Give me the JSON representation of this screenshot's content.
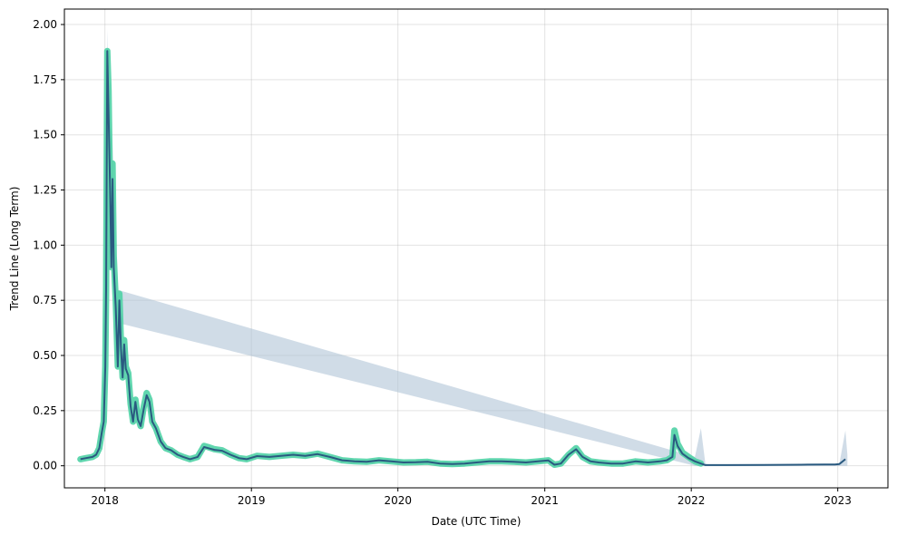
{
  "chart_data": {
    "type": "line",
    "title": "",
    "xlabel": "Date (UTC Time)",
    "ylabel": "Trend Line (Long Term)",
    "x_scale": "date",
    "xlim": [
      "2017-09-22",
      "2023-05-06"
    ],
    "ylim": [
      -0.1,
      2.07
    ],
    "x_ticks": [
      "2018",
      "2019",
      "2020",
      "2021",
      "2022",
      "2023"
    ],
    "x_tick_dates": [
      "2018-01-01",
      "2019-01-01",
      "2020-01-01",
      "2021-01-01",
      "2022-01-01",
      "2023-01-01"
    ],
    "y_ticks": [
      "0.00",
      "0.25",
      "0.50",
      "0.75",
      "1.00",
      "1.25",
      "1.50",
      "1.75",
      "2.00"
    ],
    "y_tick_values": [
      0,
      0.25,
      0.5,
      0.75,
      1.0,
      1.25,
      1.5,
      1.75,
      2.0
    ],
    "grid": true,
    "legend": "none",
    "colors": {
      "actual_glow": "#4fd1a5",
      "trend_line": "#2a5a80",
      "band": "#a9bfd3"
    },
    "series": [
      {
        "role": "actual",
        "x": [
          "2017-11-01",
          "2017-11-15",
          "2017-12-01",
          "2017-12-10",
          "2017-12-18",
          "2017-12-24",
          "2017-12-29",
          "2018-01-02",
          "2018-01-04",
          "2018-01-07",
          "2018-01-10",
          "2018-01-14",
          "2018-01-17",
          "2018-01-20",
          "2018-01-23",
          "2018-01-28",
          "2018-02-02",
          "2018-02-06",
          "2018-02-10",
          "2018-02-14",
          "2018-02-18",
          "2018-02-22",
          "2018-02-28",
          "2018-03-06",
          "2018-03-12",
          "2018-03-18",
          "2018-03-24",
          "2018-03-31",
          "2018-04-08",
          "2018-04-15",
          "2018-04-22",
          "2018-04-29",
          "2018-05-08",
          "2018-05-20",
          "2018-06-01",
          "2018-06-15",
          "2018-07-01",
          "2018-07-15",
          "2018-08-01",
          "2018-08-20",
          "2018-09-05",
          "2018-09-15",
          "2018-10-01",
          "2018-10-20",
          "2018-11-10",
          "2018-12-01",
          "2018-12-20",
          "2019-01-15",
          "2019-02-15",
          "2019-03-15",
          "2019-04-15",
          "2019-05-15",
          "2019-06-15",
          "2019-07-15",
          "2019-08-15",
          "2019-09-15",
          "2019-10-15",
          "2019-11-15",
          "2019-12-15",
          "2020-01-15",
          "2020-02-15",
          "2020-03-15",
          "2020-04-15",
          "2020-05-15",
          "2020-06-15",
          "2020-07-15",
          "2020-08-15",
          "2020-09-15",
          "2020-10-15",
          "2020-11-15",
          "2020-12-15",
          "2021-01-10",
          "2021-01-25",
          "2021-02-10",
          "2021-03-01",
          "2021-03-20",
          "2021-04-05",
          "2021-04-25",
          "2021-05-15",
          "2021-06-15",
          "2021-07-15",
          "2021-08-15",
          "2021-09-15",
          "2021-10-15",
          "2021-11-01",
          "2021-11-15",
          "2021-11-20",
          "2021-11-28",
          "2021-12-10",
          "2021-12-25",
          "2022-01-10",
          "2022-01-25"
        ],
        "y": [
          0.03,
          0.035,
          0.04,
          0.05,
          0.08,
          0.15,
          0.2,
          0.45,
          0.8,
          1.88,
          1.7,
          1.2,
          0.9,
          1.37,
          0.95,
          0.75,
          0.45,
          0.78,
          0.55,
          0.4,
          0.57,
          0.45,
          0.42,
          0.28,
          0.2,
          0.3,
          0.22,
          0.18,
          0.27,
          0.33,
          0.3,
          0.2,
          0.17,
          0.11,
          0.08,
          0.07,
          0.05,
          0.04,
          0.03,
          0.04,
          0.09,
          0.085,
          0.075,
          0.07,
          0.05,
          0.035,
          0.03,
          0.045,
          0.04,
          0.045,
          0.05,
          0.045,
          0.055,
          0.04,
          0.025,
          0.02,
          0.018,
          0.025,
          0.02,
          0.015,
          0.016,
          0.018,
          0.01,
          0.008,
          0.01,
          0.015,
          0.02,
          0.02,
          0.018,
          0.015,
          0.02,
          0.025,
          0.005,
          0.01,
          0.05,
          0.08,
          0.04,
          0.02,
          0.015,
          0.01,
          0.01,
          0.02,
          0.015,
          0.02,
          0.025,
          0.04,
          0.16,
          0.1,
          0.06,
          0.04,
          0.02,
          0.01
        ]
      },
      {
        "role": "trend",
        "x": [
          "2017-11-01",
          "2017-11-15",
          "2017-12-01",
          "2017-12-10",
          "2017-12-18",
          "2017-12-24",
          "2017-12-29",
          "2018-01-02",
          "2018-01-04",
          "2018-01-07",
          "2018-01-10",
          "2018-01-14",
          "2018-01-17",
          "2018-01-20",
          "2018-01-23",
          "2018-01-28",
          "2018-02-02",
          "2018-02-06",
          "2018-02-10",
          "2018-02-14",
          "2018-02-18",
          "2018-02-22",
          "2018-02-28",
          "2018-03-06",
          "2018-03-12",
          "2018-03-18",
          "2018-03-24",
          "2018-03-31",
          "2018-04-08",
          "2018-04-15",
          "2018-04-22",
          "2018-04-29",
          "2018-05-08",
          "2018-05-20",
          "2018-06-01",
          "2018-06-15",
          "2018-07-01",
          "2018-07-15",
          "2018-08-01",
          "2018-08-20",
          "2018-09-05",
          "2018-09-15",
          "2018-10-01",
          "2018-10-20",
          "2018-11-10",
          "2018-12-01",
          "2018-12-20",
          "2019-01-15",
          "2019-02-15",
          "2019-03-15",
          "2019-04-15",
          "2019-05-15",
          "2019-06-15",
          "2019-07-15",
          "2019-08-15",
          "2019-09-15",
          "2019-10-15",
          "2019-11-15",
          "2019-12-15",
          "2020-01-15",
          "2020-02-15",
          "2020-03-15",
          "2020-04-15",
          "2020-05-15",
          "2020-06-15",
          "2020-07-15",
          "2020-08-15",
          "2020-09-15",
          "2020-10-15",
          "2020-11-15",
          "2020-12-15",
          "2021-01-10",
          "2021-01-25",
          "2021-02-10",
          "2021-03-01",
          "2021-03-20",
          "2021-04-05",
          "2021-04-25",
          "2021-05-15",
          "2021-06-15",
          "2021-07-15",
          "2021-08-15",
          "2021-09-15",
          "2021-10-15",
          "2021-11-01",
          "2021-11-15",
          "2021-11-20",
          "2021-11-28",
          "2021-12-10",
          "2021-12-25",
          "2022-01-10",
          "2022-01-25",
          "2022-02-05",
          "2022-04-01",
          "2022-07-01",
          "2022-10-01",
          "2022-12-01",
          "2022-12-25",
          "2023-01-05",
          "2023-01-20"
        ],
        "y": [
          0.03,
          0.035,
          0.04,
          0.05,
          0.08,
          0.15,
          0.2,
          0.45,
          0.8,
          1.88,
          1.6,
          1.25,
          0.9,
          1.3,
          0.9,
          0.72,
          0.45,
          0.75,
          0.53,
          0.4,
          0.55,
          0.44,
          0.41,
          0.27,
          0.2,
          0.29,
          0.21,
          0.18,
          0.26,
          0.32,
          0.29,
          0.2,
          0.17,
          0.11,
          0.08,
          0.07,
          0.05,
          0.04,
          0.03,
          0.04,
          0.085,
          0.08,
          0.072,
          0.068,
          0.05,
          0.035,
          0.03,
          0.044,
          0.04,
          0.045,
          0.05,
          0.045,
          0.053,
          0.04,
          0.025,
          0.02,
          0.018,
          0.025,
          0.02,
          0.015,
          0.016,
          0.018,
          0.01,
          0.008,
          0.01,
          0.015,
          0.02,
          0.02,
          0.018,
          0.015,
          0.02,
          0.024,
          0.005,
          0.01,
          0.05,
          0.075,
          0.04,
          0.02,
          0.015,
          0.01,
          0.01,
          0.02,
          0.015,
          0.02,
          0.025,
          0.04,
          0.14,
          0.09,
          0.055,
          0.035,
          0.02,
          0.01,
          0.003,
          0.003,
          0.004,
          0.005,
          0.006,
          0.006,
          0.008,
          0.03
        ]
      },
      {
        "role": "band",
        "x": [
          "2018-01-04",
          "2018-01-07",
          "2018-01-10",
          "2018-01-20",
          "2018-01-28",
          "2022-01-10",
          "2022-01-25",
          "2022-02-05",
          "2022-02-15",
          "2022-12-25",
          "2023-01-05",
          "2023-01-20",
          "2023-01-25"
        ],
        "upper": [
          0.9,
          1.98,
          1.7,
          1.45,
          0.8,
          0.04,
          0.17,
          0.01,
          0.004,
          0.006,
          0.01,
          0.16,
          0.05
        ],
        "lower": [
          0.7,
          1.7,
          1.5,
          1.1,
          0.65,
          0.0,
          0.0,
          0.0,
          0.0,
          0.0,
          0.0,
          0.0,
          0.0
        ]
      }
    ]
  }
}
